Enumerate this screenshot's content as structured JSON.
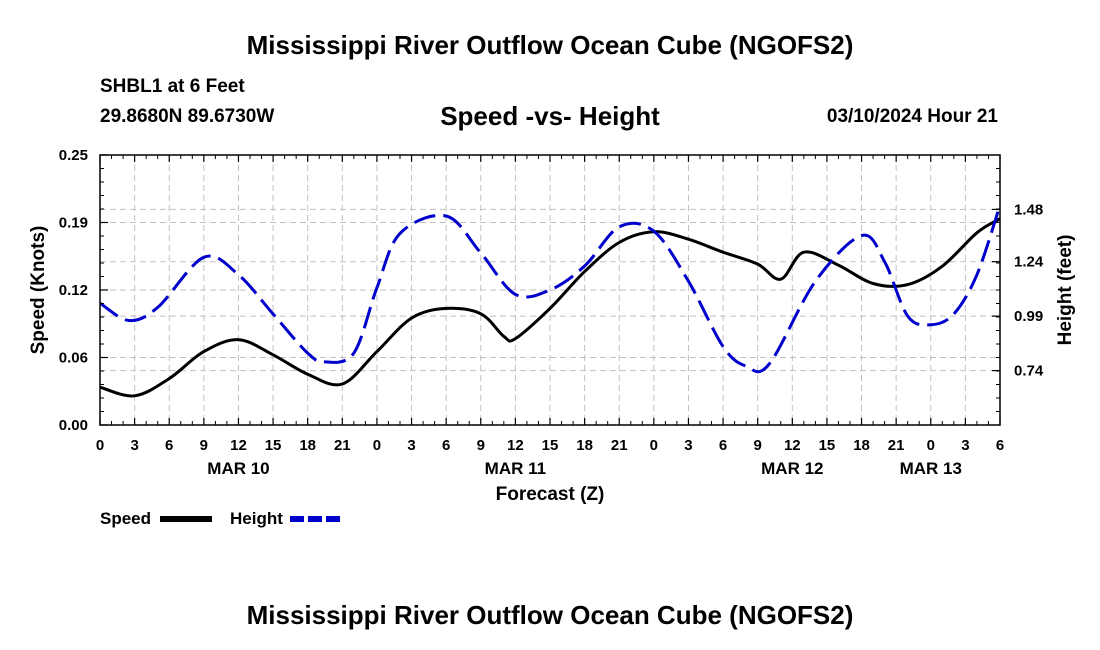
{
  "page": {
    "title": "Mississippi River Outflow Ocean Cube (NGOFS2)",
    "station": "SHBL1 at 6 Feet",
    "coords": "29.8680N  89.6730W",
    "subtitle": "Speed -vs- Height",
    "datetime": "03/10/2024 Hour 21",
    "footer_title": "Mississippi River Outflow Ocean Cube (NGOFS2)"
  },
  "chart_data": {
    "type": "line",
    "xlabel": "Forecast (Z)",
    "ylabel_left": "Speed (Knots)",
    "ylabel_right": "Height (feet)",
    "x_range_hours": [
      0,
      78
    ],
    "x_tick_labels": [
      "0",
      "3",
      "6",
      "9",
      "12",
      "15",
      "18",
      "21",
      "0",
      "3",
      "6",
      "9",
      "12",
      "15",
      "18",
      "21",
      "0",
      "3",
      "6",
      "9",
      "12",
      "15",
      "18",
      "21",
      "0",
      "3",
      "6"
    ],
    "day_labels": [
      {
        "label": "MAR 10",
        "hour": 12
      },
      {
        "label": "MAR 11",
        "hour": 36
      },
      {
        "label": "MAR 12",
        "hour": 60
      },
      {
        "label": "MAR 13",
        "hour": 72
      }
    ],
    "ylim_left": [
      0.0,
      0.25
    ],
    "y_ticks_left": [
      "0.00",
      "0.06",
      "0.12",
      "0.19",
      "0.25"
    ],
    "y_ticks_left_values": [
      0.0,
      0.0625,
      0.125,
      0.1875,
      0.25
    ],
    "ylim_right": [
      0.49,
      1.73
    ],
    "y_ticks_right": [
      "0.74",
      "0.99",
      "1.24",
      "1.48"
    ],
    "y_ticks_right_values": [
      0.74,
      0.99,
      1.24,
      1.48
    ],
    "series": [
      {
        "name": "Speed",
        "axis": "left",
        "color": "#000000",
        "dash": "solid",
        "hours": [
          0,
          3,
          6,
          9,
          12,
          15,
          18,
          21,
          24,
          27,
          30,
          33,
          35,
          36,
          39,
          42,
          45,
          48,
          51,
          54,
          57,
          59,
          61,
          64,
          67,
          70,
          73,
          76,
          78
        ],
        "values": [
          0.035,
          0.027,
          0.043,
          0.068,
          0.079,
          0.065,
          0.047,
          0.038,
          0.068,
          0.099,
          0.108,
          0.103,
          0.082,
          0.08,
          0.108,
          0.142,
          0.169,
          0.179,
          0.172,
          0.16,
          0.149,
          0.135,
          0.16,
          0.148,
          0.131,
          0.13,
          0.147,
          0.178,
          0.191
        ]
      },
      {
        "name": "Height",
        "axis": "right",
        "color": "#0000cc",
        "dash": "dashed",
        "hours": [
          0,
          2.5,
          5,
          9,
          12,
          15,
          18,
          19.5,
          22,
          24,
          26,
          30,
          33,
          36,
          39,
          42,
          45,
          48,
          51,
          54,
          56,
          58,
          62,
          66,
          68,
          70,
          72,
          74,
          76,
          78
        ],
        "values": [
          1.05,
          0.97,
          1.03,
          1.26,
          1.18,
          1.0,
          0.82,
          0.78,
          0.82,
          1.12,
          1.37,
          1.45,
          1.28,
          1.09,
          1.11,
          1.22,
          1.4,
          1.38,
          1.15,
          0.85,
          0.76,
          0.77,
          1.15,
          1.36,
          1.24,
          0.99,
          0.95,
          1.0,
          1.18,
          1.5
        ]
      }
    ],
    "legend": [
      {
        "label": "Speed",
        "color": "#000000",
        "dash": "solid"
      },
      {
        "label": "Height",
        "color": "#0000cc",
        "dash": "dashed"
      }
    ],
    "grid": true
  }
}
